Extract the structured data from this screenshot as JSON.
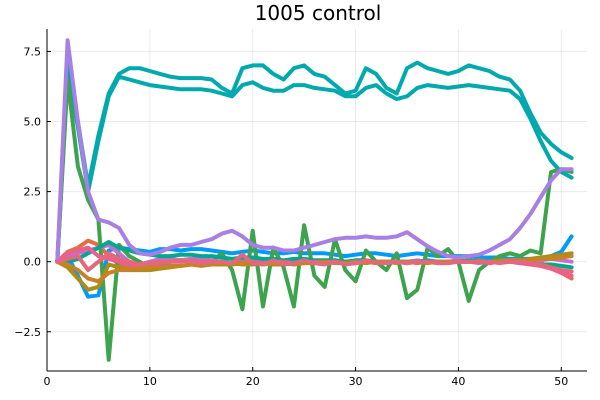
{
  "chart_data": {
    "type": "line",
    "title": "1005 control",
    "xlabel": "",
    "ylabel": "",
    "xlim": [
      0,
      52.5
    ],
    "ylim": [
      -3.9,
      8.3
    ],
    "xticks": [
      0,
      10,
      20,
      30,
      40,
      50
    ],
    "yticks": [
      -2.5,
      0.0,
      2.5,
      5.0,
      7.5
    ],
    "ytick_labels": [
      "−2.5",
      "0.0",
      "2.5",
      "5.0",
      "7.5"
    ],
    "grid": true,
    "legend": "none",
    "x": [
      1,
      2,
      3,
      4,
      5,
      6,
      7,
      8,
      9,
      10,
      11,
      12,
      13,
      14,
      15,
      16,
      17,
      18,
      19,
      20,
      21,
      22,
      23,
      24,
      25,
      26,
      27,
      28,
      29,
      30,
      31,
      32,
      33,
      34,
      35,
      36,
      37,
      38,
      39,
      40,
      41,
      42,
      43,
      44,
      45,
      46,
      47,
      48,
      49,
      50,
      51
    ],
    "series": [
      {
        "color": "#00a9ad",
        "values": [
          0.0,
          7.0,
          5.0,
          2.7,
          4.5,
          6.0,
          6.7,
          6.9,
          6.9,
          6.8,
          6.7,
          6.6,
          6.55,
          6.55,
          6.55,
          6.5,
          6.2,
          6.0,
          6.9,
          7.0,
          7.0,
          6.7,
          6.5,
          6.9,
          7.0,
          6.7,
          6.6,
          6.3,
          6.0,
          6.1,
          6.9,
          6.7,
          6.2,
          6.0,
          6.9,
          7.1,
          6.9,
          6.8,
          6.7,
          6.8,
          7.0,
          6.9,
          6.8,
          6.6,
          6.5,
          6.1,
          5.3,
          4.6,
          4.2,
          3.9,
          3.7
        ]
      },
      {
        "color": "#00a9ad",
        "values": [
          0.0,
          6.8,
          4.8,
          2.5,
          4.3,
          5.9,
          6.6,
          6.5,
          6.4,
          6.3,
          6.25,
          6.2,
          6.15,
          6.15,
          6.15,
          6.1,
          6.0,
          5.9,
          6.3,
          6.4,
          6.2,
          6.1,
          6.1,
          6.3,
          6.3,
          6.2,
          6.15,
          6.1,
          5.9,
          5.9,
          6.2,
          6.3,
          6.0,
          5.8,
          5.9,
          6.2,
          6.3,
          6.25,
          6.2,
          6.25,
          6.3,
          6.25,
          6.2,
          6.15,
          6.1,
          5.8,
          5.1,
          4.3,
          3.6,
          3.2,
          3.0
        ]
      },
      {
        "color": "#009af9",
        "values": [
          0.0,
          0.2,
          -0.5,
          -1.25,
          -1.2,
          0.4,
          0.5,
          0.45,
          0.4,
          0.35,
          0.45,
          0.45,
          0.4,
          0.45,
          0.45,
          0.4,
          0.35,
          0.3,
          0.35,
          0.4,
          0.35,
          0.3,
          0.3,
          0.35,
          0.3,
          0.3,
          0.3,
          0.25,
          0.2,
          0.25,
          0.3,
          0.3,
          0.25,
          0.2,
          0.25,
          0.3,
          0.25,
          0.2,
          0.2,
          0.2,
          0.2,
          0.15,
          0.15,
          0.15,
          0.1,
          0.1,
          0.1,
          0.1,
          0.2,
          0.35,
          0.9
        ]
      },
      {
        "color": "#e26f46",
        "values": [
          0.0,
          0.35,
          0.5,
          0.75,
          0.6,
          0.2,
          -0.1,
          -0.2,
          -0.2,
          -0.15,
          -0.1,
          0.0,
          0.05,
          0.05,
          0.0,
          -0.05,
          -0.1,
          -0.1,
          0.1,
          0.0,
          -0.1,
          -0.05,
          0.0,
          0.05,
          0.0,
          -0.05,
          0.0,
          0.05,
          0.0,
          -0.05,
          0.0,
          0.0,
          -0.05,
          0.0,
          0.0,
          -0.05,
          0.0,
          0.0,
          -0.05,
          0.0,
          0.05,
          0.0,
          -0.05,
          0.0,
          0.0,
          0.0,
          0.0,
          -0.05,
          -0.2,
          -0.4,
          -0.6
        ]
      },
      {
        "color": "#3da44d",
        "values": [
          0.0,
          6.5,
          3.4,
          2.2,
          1.5,
          -3.5,
          0.6,
          0.2,
          0.0,
          -0.2,
          -0.1,
          0.0,
          0.05,
          0.1,
          0.05,
          0.0,
          0.3,
          -0.3,
          -1.7,
          1.1,
          -1.6,
          0.5,
          -0.2,
          -1.6,
          1.3,
          -0.5,
          -0.9,
          0.8,
          -0.3,
          -0.7,
          0.4,
          0.0,
          -0.3,
          0.3,
          -1.3,
          -1.0,
          0.5,
          0.2,
          0.45,
          0.0,
          -1.4,
          -0.3,
          0.0,
          0.2,
          0.3,
          0.2,
          0.4,
          0.3,
          3.2,
          3.3,
          3.2
        ]
      },
      {
        "color": "#c271d2",
        "values": [
          0.0,
          0.2,
          0.3,
          0.4,
          0.5,
          0.6,
          0.3,
          0.0,
          -0.1,
          0.0,
          0.1,
          0.1,
          0.05,
          0.1,
          0.1,
          0.05,
          0.0,
          -0.1,
          0.05,
          0.1,
          0.0,
          -0.05,
          -0.1,
          0.0,
          0.05,
          0.0,
          -0.05,
          0.05,
          0.0,
          -0.05,
          0.0,
          0.0,
          -0.05,
          0.0,
          0.0,
          0.05,
          0.0,
          -0.05,
          0.0,
          0.05,
          0.0,
          -0.05,
          0.0,
          0.0,
          0.05,
          0.0,
          0.0,
          0.05,
          0.1,
          0.05,
          0.0
        ]
      },
      {
        "color": "#ac8d18",
        "values": [
          0.0,
          -0.2,
          -0.6,
          -1.0,
          -0.9,
          -0.1,
          -0.2,
          -0.3,
          -0.3,
          -0.3,
          -0.25,
          -0.2,
          -0.15,
          -0.1,
          -0.15,
          -0.1,
          -0.1,
          -0.05,
          -0.1,
          -0.1,
          -0.05,
          -0.1,
          -0.1,
          -0.05,
          0.0,
          -0.05,
          -0.05,
          0.0,
          -0.05,
          -0.05,
          0.0,
          -0.05,
          0.0,
          0.0,
          -0.05,
          0.0,
          0.0,
          -0.05,
          0.0,
          0.0,
          0.0,
          0.05,
          0.0,
          0.05,
          0.05,
          0.05,
          0.1,
          0.15,
          0.2,
          0.25,
          0.3
        ]
      },
      {
        "color": "#00a98d",
        "values": [
          0.0,
          0.0,
          0.1,
          0.3,
          0.5,
          0.7,
          0.5,
          0.4,
          0.3,
          0.25,
          0.2,
          0.2,
          0.25,
          0.25,
          0.2,
          0.2,
          0.15,
          0.1,
          0.15,
          0.15,
          0.1,
          0.1,
          0.05,
          0.1,
          0.1,
          0.05,
          0.05,
          0.05,
          0.0,
          0.05,
          0.05,
          0.0,
          0.0,
          0.0,
          0.0,
          0.0,
          0.05,
          0.0,
          0.0,
          0.0,
          0.05,
          0.0,
          0.0,
          0.0,
          0.0,
          -0.05,
          -0.05,
          -0.1,
          -0.1,
          -0.15,
          -0.2
        ]
      },
      {
        "color": "#ed5d92",
        "values": [
          0.0,
          0.3,
          0.4,
          0.5,
          0.2,
          0.1,
          0.0,
          -0.1,
          -0.1,
          -0.1,
          -0.05,
          0.0,
          0.0,
          0.05,
          0.0,
          0.0,
          -0.05,
          -0.05,
          0.0,
          0.0,
          -0.05,
          0.0,
          0.0,
          -0.05,
          -0.05,
          0.0,
          0.0,
          0.0,
          -0.05,
          0.0,
          0.0,
          0.0,
          0.0,
          0.0,
          -0.05,
          0.0,
          0.0,
          0.0,
          0.0,
          0.0,
          0.0,
          0.0,
          -0.05,
          0.0,
          0.0,
          -0.05,
          -0.1,
          -0.15,
          -0.25,
          -0.4,
          -0.5
        ]
      },
      {
        "color": "#c68225",
        "values": [
          0.0,
          -0.1,
          -0.3,
          -0.6,
          -0.7,
          -0.4,
          -0.3,
          -0.3,
          -0.25,
          -0.2,
          -0.2,
          -0.15,
          -0.15,
          -0.1,
          -0.1,
          -0.1,
          -0.05,
          -0.1,
          -0.05,
          -0.05,
          -0.1,
          -0.05,
          -0.05,
          -0.1,
          -0.05,
          -0.05,
          0.0,
          -0.05,
          -0.05,
          0.0,
          -0.05,
          0.0,
          0.0,
          -0.05,
          0.0,
          0.0,
          -0.05,
          0.0,
          0.0,
          0.0,
          0.0,
          0.0,
          0.0,
          0.0,
          0.05,
          0.05,
          0.05,
          0.1,
          0.1,
          0.15,
          0.2
        ]
      },
      {
        "color": "#a77fe5",
        "values": [
          0.0,
          7.9,
          5.0,
          2.5,
          1.5,
          1.4,
          1.2,
          0.6,
          0.3,
          0.25,
          0.35,
          0.5,
          0.6,
          0.6,
          0.7,
          0.8,
          1.0,
          1.1,
          0.9,
          0.6,
          0.5,
          0.5,
          0.4,
          0.4,
          0.5,
          0.6,
          0.7,
          0.8,
          0.85,
          0.85,
          0.9,
          0.85,
          0.85,
          0.9,
          1.05,
          0.8,
          0.55,
          0.35,
          0.2,
          0.15,
          0.2,
          0.25,
          0.4,
          0.6,
          0.8,
          1.2,
          1.7,
          2.3,
          2.9,
          3.3,
          3.3
        ]
      },
      {
        "color": "#e5677d",
        "values": [
          0.0,
          0.1,
          0.2,
          -0.3,
          0.0,
          0.3,
          0.1,
          0.0,
          -0.1,
          -0.05,
          0.0,
          0.0,
          0.05,
          0.0,
          -0.05,
          0.0,
          0.0,
          -0.05,
          0.25,
          -0.05,
          -0.1,
          0.05,
          -0.1,
          -0.05,
          0.05,
          -0.05,
          -0.1,
          0.0,
          -0.1,
          -0.05,
          0.05,
          -0.05,
          -0.05,
          0.0,
          -0.05,
          0.0,
          0.0,
          -0.05,
          -0.05,
          0.0,
          0.0,
          0.0,
          0.0,
          -0.05,
          0.0,
          0.0,
          -0.05,
          -0.1,
          -0.2,
          -0.3,
          -0.35
        ]
      }
    ]
  }
}
